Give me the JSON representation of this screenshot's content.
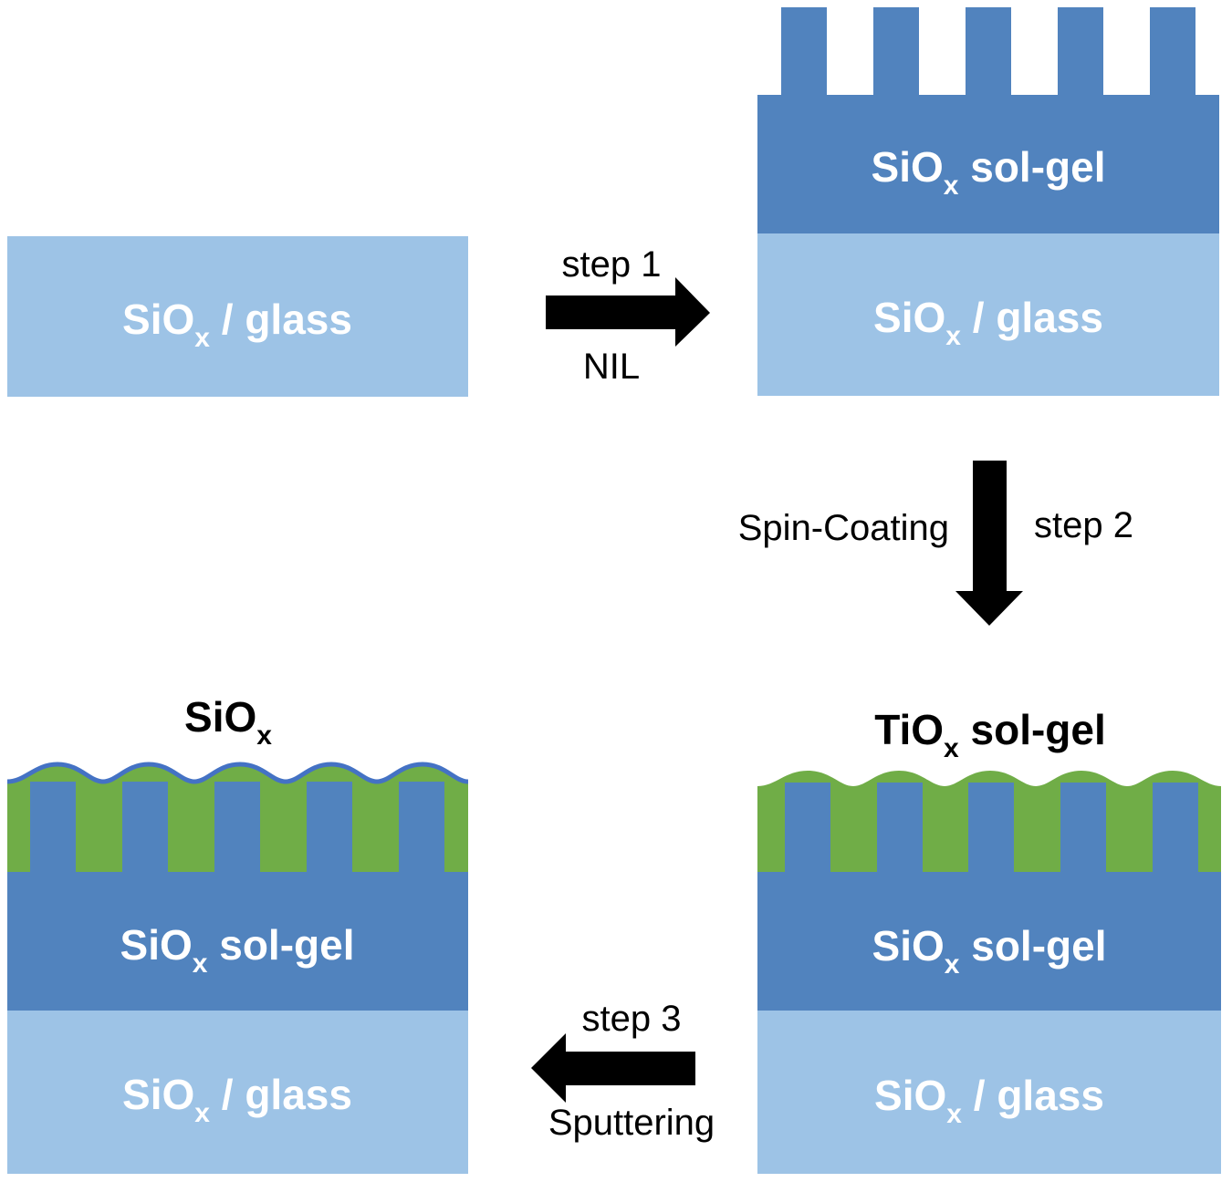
{
  "colors": {
    "glass": "#9dc3e6",
    "solgel": "#5183be",
    "tiox": "#70ad47",
    "sputter_line": "#4472c4",
    "arrow": "#000000",
    "label_on_layer": "#ffffff"
  },
  "layers": {
    "sio": "SiO",
    "tio": "TiO",
    "sub_x": "x",
    "glass_suffix": " / glass",
    "solgel_suffix": " sol-gel"
  },
  "panel_top_left": {
    "layer_label": "SiOx / glass"
  },
  "panel_top_right": {
    "top_layer": "SiOx sol-gel",
    "bottom_layer": "SiOx / glass"
  },
  "panel_bottom_right": {
    "title": "TiOx sol-gel",
    "top_layer": "SiOx sol-gel",
    "bottom_layer": "SiOx / glass"
  },
  "panel_bottom_left": {
    "title": "SiOx",
    "top_layer": "SiOx sol-gel",
    "bottom_layer": "SiOx / glass"
  },
  "steps": {
    "step1": {
      "label": "step 1",
      "method": "NIL",
      "direction": "right-arrow-icon"
    },
    "step2": {
      "label": "step 2",
      "method": "Spin-Coating",
      "direction": "down-arrow-icon"
    },
    "step3": {
      "label": "step 3",
      "method": "Sputtering",
      "direction": "left-arrow-icon"
    }
  }
}
